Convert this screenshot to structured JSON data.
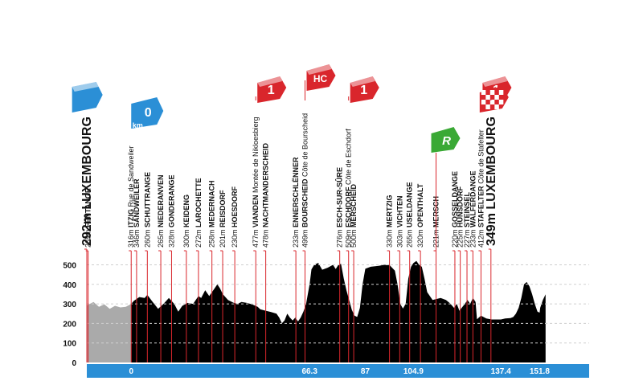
{
  "chart_data": {
    "type": "area",
    "title": "",
    "xlabel": "",
    "ylabel": "",
    "ylim": [
      0,
      550
    ],
    "xlim": [
      -16.5,
      170.2
    ],
    "grid": true,
    "yticks": [
      0,
      100,
      200,
      300,
      400,
      500
    ],
    "xticks": [
      "0",
      "66.3",
      "87",
      "104.9",
      "137.4",
      "151.8"
    ],
    "xtick_values": [
      0,
      66.3,
      87,
      104.9,
      137.4,
      151.8
    ],
    "colors": {
      "profile": "#000000",
      "neutral": "#aaaaaa",
      "axis_bar": "#2b8fd6",
      "marker_line": "#d9262c",
      "cat1": "#d9262c",
      "start": "#2b8fd6",
      "sprint": "#3aa935"
    },
    "neutral_section": {
      "from": -16.5,
      "to": 0
    },
    "profile": [
      [
        -16.5,
        292
      ],
      [
        -14,
        310
      ],
      [
        -12,
        285
      ],
      [
        -10,
        298
      ],
      [
        -8,
        275
      ],
      [
        -6,
        290
      ],
      [
        -4,
        282
      ],
      [
        -2,
        285
      ],
      [
        0,
        300
      ],
      [
        1,
        316
      ],
      [
        3,
        335
      ],
      [
        5,
        330
      ],
      [
        6,
        346
      ],
      [
        8,
        310
      ],
      [
        10,
        275
      ],
      [
        12,
        300
      ],
      [
        14,
        330
      ],
      [
        16,
        300
      ],
      [
        17.5,
        260
      ],
      [
        19,
        290
      ],
      [
        21,
        305
      ],
      [
        23,
        300
      ],
      [
        25,
        340
      ],
      [
        26,
        330
      ],
      [
        27.5,
        370
      ],
      [
        29,
        340
      ],
      [
        31,
        380
      ],
      [
        32,
        400
      ],
      [
        33,
        380
      ],
      [
        34,
        350
      ],
      [
        36,
        320
      ],
      [
        38,
        306
      ],
      [
        39.5,
        300
      ],
      [
        41,
        310
      ],
      [
        43,
        305
      ],
      [
        45,
        297
      ],
      [
        47,
        285
      ],
      [
        48,
        272
      ],
      [
        50,
        265
      ],
      [
        52,
        258
      ],
      [
        54,
        250
      ],
      [
        55,
        230
      ],
      [
        56,
        201
      ],
      [
        57,
        215
      ],
      [
        58,
        250
      ],
      [
        59,
        230
      ],
      [
        60,
        215
      ],
      [
        61,
        230
      ],
      [
        62,
        210
      ],
      [
        63,
        230
      ],
      [
        64,
        260
      ],
      [
        65,
        300
      ],
      [
        66.3,
        400
      ],
      [
        67,
        477
      ],
      [
        68,
        500
      ],
      [
        69.5,
        510
      ],
      [
        71,
        475
      ],
      [
        73,
        485
      ],
      [
        75,
        500
      ],
      [
        76,
        478
      ],
      [
        77,
        500
      ],
      [
        78,
        505
      ],
      [
        79,
        430
      ],
      [
        80,
        370
      ],
      [
        81,
        320
      ],
      [
        82,
        270
      ],
      [
        83,
        240
      ],
      [
        84,
        233
      ],
      [
        85,
        280
      ],
      [
        86,
        400
      ],
      [
        87,
        480
      ],
      [
        89,
        490
      ],
      [
        92,
        495
      ],
      [
        94,
        500
      ],
      [
        96,
        499
      ],
      [
        98,
        470
      ],
      [
        99,
        400
      ],
      [
        100,
        300
      ],
      [
        101,
        276
      ],
      [
        102,
        300
      ],
      [
        103,
        430
      ],
      [
        104,
        490
      ],
      [
        104.9,
        509
      ],
      [
        106,
        520
      ],
      [
        107,
        500
      ],
      [
        108,
        490
      ],
      [
        109,
        430
      ],
      [
        110,
        360
      ],
      [
        112,
        320
      ],
      [
        115,
        330
      ],
      [
        117,
        320
      ],
      [
        118.5,
        303
      ],
      [
        120,
        280
      ],
      [
        121,
        300
      ],
      [
        122,
        265
      ],
      [
        124,
        300
      ],
      [
        125,
        320
      ],
      [
        126,
        300
      ],
      [
        127,
        330
      ],
      [
        128,
        310
      ],
      [
        128.5,
        221
      ],
      [
        130,
        240
      ],
      [
        132,
        225
      ],
      [
        134,
        220
      ],
      [
        136,
        220
      ],
      [
        137.4,
        220
      ],
      [
        139,
        225
      ],
      [
        141,
        227
      ],
      [
        142,
        233
      ],
      [
        143,
        250
      ],
      [
        144,
        280
      ],
      [
        145,
        330
      ],
      [
        146,
        400
      ],
      [
        147,
        412
      ],
      [
        148,
        390
      ],
      [
        149,
        350
      ],
      [
        150,
        300
      ],
      [
        151,
        260
      ],
      [
        151.8,
        255
      ],
      [
        152,
        280
      ],
      [
        153,
        320
      ],
      [
        154,
        349
      ]
    ]
  },
  "y_tick_labels": [
    "500",
    "400",
    "300",
    "200",
    "100",
    "0"
  ],
  "locations": [
    {
      "km": -16.5,
      "alt": "292m",
      "name": "LUXEMBOURG",
      "sub": "",
      "big": true
    },
    {
      "km": -16.0,
      "alt": "265m",
      "name": "FENTANGE",
      "sub": "",
      "big": false
    },
    {
      "km": 0.0,
      "alt": "316m",
      "name": "ITZIG",
      "sub": "Rue de Sandweiler",
      "big": false
    },
    {
      "km": 2.0,
      "alt": "346m",
      "name": "SANDWEILER",
      "sub": "",
      "big": false
    },
    {
      "km": 6.0,
      "alt": "260m",
      "name": "SCHUTTRANGE",
      "sub": "",
      "big": false
    },
    {
      "km": 11.0,
      "alt": "265m",
      "name": "NIEDERANVEN",
      "sub": "",
      "big": false
    },
    {
      "km": 15.0,
      "alt": "328m",
      "name": "GONDERANGE",
      "sub": "",
      "big": false
    },
    {
      "km": 20.5,
      "alt": "300m",
      "name": "KEIDENG",
      "sub": "",
      "big": false
    },
    {
      "km": 25.0,
      "alt": "272m",
      "name": "LAROCHETTE",
      "sub": "",
      "big": false
    },
    {
      "km": 30.0,
      "alt": "258m",
      "name": "MEDERNACH",
      "sub": "",
      "big": false
    },
    {
      "km": 34.0,
      "alt": "201m",
      "name": "REISDORF",
      "sub": "",
      "big": false
    },
    {
      "km": 38.5,
      "alt": "230m",
      "name": "HOESDORF",
      "sub": "",
      "big": false
    },
    {
      "km": 46.3,
      "alt": "477m",
      "name": "VIANDEN",
      "sub": "Montée de Nikloesbierg",
      "big": false
    },
    {
      "km": 50.0,
      "alt": "478m",
      "name": "NACHTMANDERSCHEID",
      "sub": "",
      "big": false
    },
    {
      "km": 61.2,
      "alt": "233m",
      "name": "ENNERSCHLËNNER",
      "sub": "",
      "big": false
    },
    {
      "km": 64.6,
      "alt": "499m",
      "name": "BOURSCHEID",
      "sub": "Côte de Bourscheid",
      "big": false
    },
    {
      "km": 77.5,
      "alt": "276m",
      "name": "ESCH-SUR-SÛRE",
      "sub": "",
      "big": false
    },
    {
      "km": 80.8,
      "alt": "509m",
      "name": "ESCHDORF",
      "sub": "Côte de Eschdorf",
      "big": false
    },
    {
      "km": 82.7,
      "alt": "500m",
      "name": "MERSCHEID",
      "sub": "",
      "big": false
    },
    {
      "km": 96.0,
      "alt": "330m",
      "name": "MERTZIG",
      "sub": "",
      "big": false
    },
    {
      "km": 99.8,
      "alt": "303m",
      "name": "VICHTEN",
      "sub": "",
      "big": false
    },
    {
      "km": 103.5,
      "alt": "265m",
      "name": "USELDANGE",
      "sub": "",
      "big": false
    },
    {
      "km": 107.5,
      "alt": "320m",
      "name": "OPENTHALT",
      "sub": "",
      "big": false
    },
    {
      "km": 113.3,
      "alt": "221m",
      "name": "MERSCH",
      "sub": "",
      "big": false
    },
    {
      "km": 120.3,
      "alt": "220m",
      "name": "GOSSELDANGE",
      "sub": "",
      "big": false
    },
    {
      "km": 122.3,
      "alt": "225m",
      "name": "HUNSDORF",
      "sub": "",
      "big": false
    },
    {
      "km": 124.8,
      "alt": "227m",
      "name": "STEINSEL",
      "sub": "",
      "big": false
    },
    {
      "km": 127.0,
      "alt": "233m",
      "name": "WALFERDANGE",
      "sub": "",
      "big": false
    },
    {
      "km": 130.0,
      "alt": "412m",
      "name": "STAFELTER",
      "sub": "Côte de Stafelter",
      "big": false
    },
    {
      "km": 133.7,
      "alt": "349m",
      "name": "LUXEMBOURG",
      "sub": "",
      "big": true
    }
  ],
  "badges": [
    {
      "type": "start-flag",
      "km": -16.0,
      "label": ""
    },
    {
      "type": "km0",
      "km": 0.0,
      "label": "0",
      "unit": "km"
    },
    {
      "type": "climb",
      "km": 46.3,
      "label": "1"
    },
    {
      "type": "climb",
      "km": 64.6,
      "label": "HC"
    },
    {
      "type": "climb",
      "km": 80.8,
      "label": "1"
    },
    {
      "type": "sprint",
      "km": 113.3,
      "label": "R"
    },
    {
      "type": "climb",
      "km": 130.0,
      "label": "1"
    },
    {
      "type": "finish",
      "km": 133.7,
      "label": ""
    }
  ]
}
